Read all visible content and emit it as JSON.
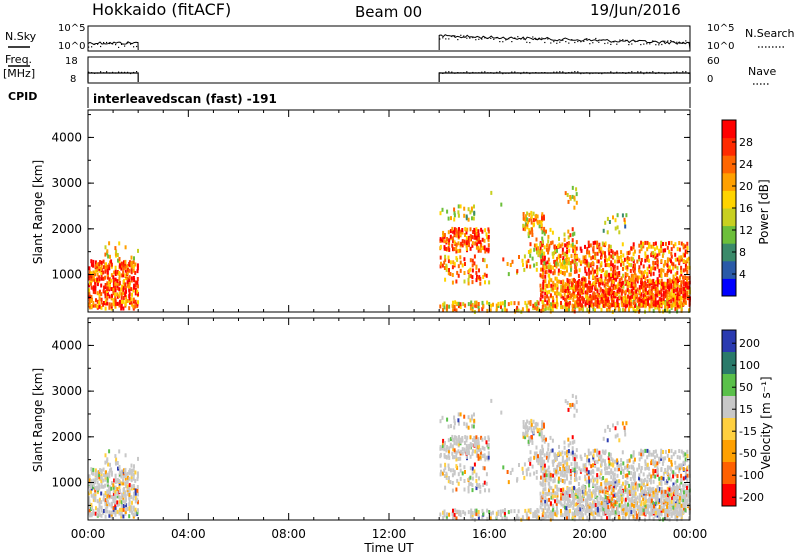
{
  "header": {
    "title": "Hokkaido (fitACF)",
    "beam": "Beam 00",
    "date": "19/Jun/2016"
  },
  "labels": {
    "nsky": "N.Sky",
    "nsearch": "N.Search",
    "freq_line1": "Freq.",
    "freq_line2": "[MHz]",
    "nave": "Nave",
    "cpid": "CPID",
    "cpid_value": "interleavedscan (fast) -191",
    "xlabel": "Time UT",
    "ylabel": "Slant Range [km]",
    "power_label": "Power [dB]",
    "velocity_label": "Velocity [m s⁻¹]"
  },
  "colors": {
    "power_scale": [
      "#0000ff",
      "#2a5aa8",
      "#3a8a6a",
      "#6cbf3a",
      "#c8d020",
      "#ffd400",
      "#ffa000",
      "#ff6600",
      "#ff2a00",
      "#ff0000"
    ],
    "velocity_scale": [
      "#2a3ab0",
      "#2a7a6a",
      "#5ac04a",
      "#c8c8c8",
      "#ffd040",
      "#ffa000",
      "#ff6000",
      "#ff0000"
    ]
  },
  "chart_data": [
    {
      "type": "line",
      "name": "noise-panel",
      "left_ticks": [
        "10^5",
        "10^0"
      ],
      "right_ticks": [
        "10^5",
        "10^0"
      ],
      "segments": [
        [
          0,
          2
        ],
        [
          14,
          24
        ]
      ]
    },
    {
      "type": "line",
      "name": "freq-nave-panel",
      "left_ticks": [
        "18",
        "8"
      ],
      "right_ticks": [
        "60",
        "0"
      ],
      "segments": [
        [
          0,
          2
        ],
        [
          14,
          24
        ]
      ],
      "freq_MHz": 10.5
    },
    {
      "type": "heatmap",
      "name": "power",
      "x_ticks": [
        "00:00",
        "04:00",
        "08:00",
        "12:00",
        "16:00",
        "20:00",
        "00:00"
      ],
      "xlim_hours": [
        0,
        24
      ],
      "y_ticks": [
        1000,
        2000,
        3000,
        4000
      ],
      "ylim_km": [
        180,
        4600
      ],
      "colorbar_ticks": [
        "4",
        "8",
        "12",
        "16",
        "20",
        "24",
        "28"
      ],
      "colorbar_range": [
        0,
        32
      ]
    },
    {
      "type": "heatmap",
      "name": "velocity",
      "x_ticks": [
        "00:00",
        "04:00",
        "08:00",
        "12:00",
        "16:00",
        "20:00",
        "00:00"
      ],
      "xlim_hours": [
        0,
        24
      ],
      "y_ticks": [
        1000,
        2000,
        3000,
        4000
      ],
      "ylim_km": [
        180,
        4600
      ],
      "colorbar_ticks": [
        "200",
        "100",
        "50",
        "15",
        "-15",
        "-50",
        "-100",
        "-200"
      ]
    }
  ]
}
